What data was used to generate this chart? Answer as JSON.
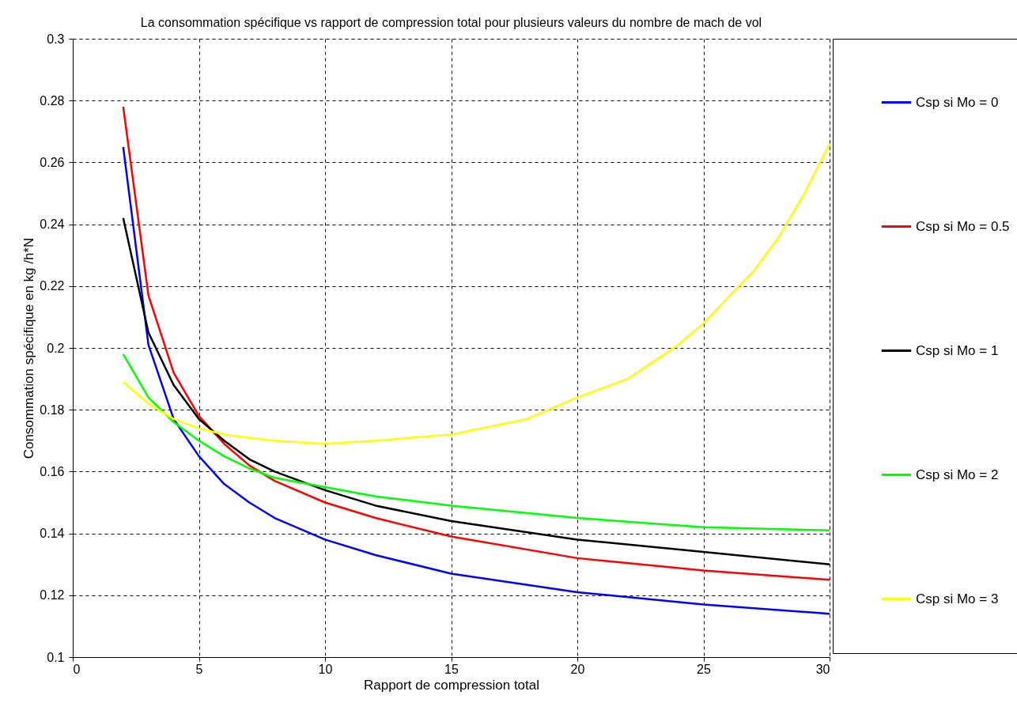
{
  "chart_data": {
    "type": "line",
    "title": "La consommation spécifique vs rapport de compression total pour plusieurs valeurs du nombre de mach de vol",
    "xlabel": "Rapport de compression total",
    "ylabel": "Consommation spécifique en  kg /h*N",
    "xlim": [
      0,
      30
    ],
    "xticks": [
      0,
      5,
      10,
      15,
      20,
      25,
      30
    ],
    "ylim": [
      0.1,
      0.3
    ],
    "yticks": [
      0.1,
      0.12,
      0.14,
      0.16,
      0.18,
      0.2,
      0.22,
      0.24,
      0.26,
      0.28,
      0.3
    ],
    "grid": true,
    "legend": "right",
    "line_style": "solid",
    "marker": "none",
    "series": [
      {
        "name": "Csp si Mo = 0",
        "color": "#0000ff",
        "x": [
          2,
          3,
          4,
          5,
          6,
          7,
          8,
          10,
          12,
          15,
          20,
          25,
          30
        ],
        "values": [
          0.265,
          0.201,
          0.177,
          0.165,
          0.156,
          0.15,
          0.145,
          0.138,
          0.133,
          0.127,
          0.121,
          0.117,
          0.114
        ]
      },
      {
        "name": "Csp si Mo = 0.5",
        "color": "#ff0000",
        "x": [
          2,
          3,
          4,
          5,
          6,
          7,
          8,
          10,
          12,
          15,
          20,
          25,
          30
        ],
        "values": [
          0.278,
          0.217,
          0.192,
          0.178,
          0.169,
          0.162,
          0.157,
          0.15,
          0.145,
          0.139,
          0.132,
          0.128,
          0.125
        ]
      },
      {
        "name": "Csp si Mo = 1",
        "color": "#000000",
        "x": [
          2,
          3,
          4,
          5,
          6,
          7,
          8,
          10,
          12,
          15,
          20,
          25,
          30
        ],
        "values": [
          0.242,
          0.205,
          0.188,
          0.177,
          0.17,
          0.164,
          0.16,
          0.154,
          0.149,
          0.144,
          0.138,
          0.134,
          0.13
        ]
      },
      {
        "name": "Csp si Mo = 2",
        "color": "#00ff00",
        "x": [
          2,
          3,
          4,
          5,
          6,
          7,
          8,
          10,
          12,
          15,
          20,
          25,
          30
        ],
        "values": [
          0.198,
          0.184,
          0.176,
          0.17,
          0.165,
          0.161,
          0.158,
          0.155,
          0.152,
          0.149,
          0.145,
          0.142,
          0.141
        ]
      },
      {
        "name": "Csp si Mo = 3",
        "color": "#ffff00",
        "x": [
          2,
          3,
          4,
          5,
          6,
          7,
          8,
          10,
          12,
          15,
          18,
          20,
          22,
          24,
          25,
          27,
          28,
          29,
          30
        ],
        "values": [
          0.189,
          0.182,
          0.177,
          0.174,
          0.172,
          0.171,
          0.17,
          0.169,
          0.17,
          0.172,
          0.177,
          0.184,
          0.19,
          0.201,
          0.208,
          0.225,
          0.236,
          0.25,
          0.266
        ]
      }
    ]
  }
}
